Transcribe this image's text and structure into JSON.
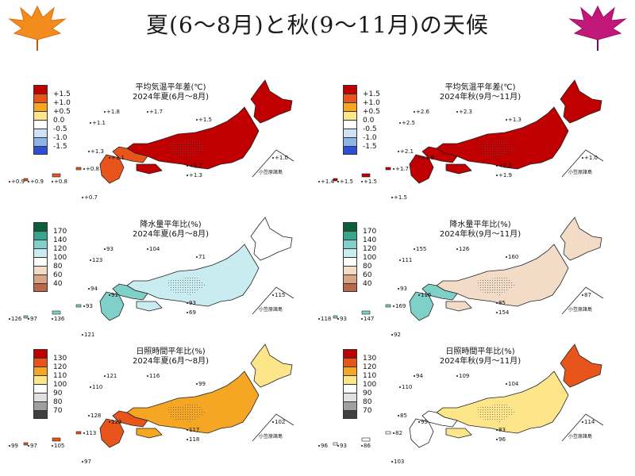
{
  "page_title": "夏(6〜8月)と秋(9〜11月)の天候",
  "islands_label": "小笠原諸島",
  "legends": {
    "temp": {
      "labels": [
        "+1.5",
        "+1.0",
        "+0.5",
        "0.0",
        "-0.5",
        "-1.0",
        "-1.5"
      ],
      "colors": [
        "#c00000",
        "#e8551a",
        "#f5a623",
        "#fde68a",
        "#ffffff",
        "#cfe3f7",
        "#8fb4e8",
        "#2b4fd6"
      ]
    },
    "precip": {
      "labels": [
        "170",
        "140",
        "120",
        "100",
        "80",
        "60",
        "40"
      ],
      "colors": [
        "#0b5e3a",
        "#3aa38e",
        "#7fd0c8",
        "#c8ecf0",
        "#ffffff",
        "#f2dcc8",
        "#d9a585",
        "#b86a48"
      ]
    },
    "sun": {
      "labels": [
        "130",
        "120",
        "110",
        "100",
        "90",
        "80",
        "70"
      ],
      "colors": [
        "#c00000",
        "#e8551a",
        "#f5a623",
        "#fde68a",
        "#ffffff",
        "#e0e0e0",
        "#a0a0a0",
        "#404040"
      ]
    }
  },
  "panels": [
    {
      "id": "temp-summer",
      "title_line1": "平均気温平年差(℃)",
      "title_line2": "2024年夏(6月〜8月)",
      "legend": "temp",
      "fill_main": "#c00000",
      "fill_west": "#e8551a",
      "fill_north": "#c00000",
      "values": [
        "+1.8",
        "+1.7",
        "+1.1",
        "+1.5",
        "+1.3",
        "+1.1",
        "+1.7",
        "+1.3",
        "+1.0",
        "+0.8",
        "+0.9",
        "+0.9",
        "+0.8",
        "+0.7"
      ]
    },
    {
      "id": "temp-autumn",
      "title_line1": "平均気温平年差(℃)",
      "title_line2": "2024年秋(9月〜11月)",
      "legend": "temp",
      "fill_main": "#c00000",
      "fill_west": "#c00000",
      "fill_north": "#c00000",
      "values": [
        "+2.6",
        "+2.3",
        "+2.5",
        "+1.3",
        "+2.1",
        "+1.9",
        "+2.2",
        "+1.9",
        "+1.0",
        "+1.7",
        "+1.4",
        "+1.5",
        "+1.5",
        "+1.5"
      ]
    },
    {
      "id": "precip-summer",
      "title_line1": "降水量平年比(%)",
      "title_line2": "2024年夏(6月〜8月)",
      "legend": "precip",
      "fill_main": "#c8ecf0",
      "fill_west": "#7fd0c8",
      "fill_north": "#ffffff",
      "values": [
        "93",
        "104",
        "123",
        "71",
        "94",
        "91",
        "93",
        "69",
        "115",
        "93",
        "126",
        "97",
        "136",
        "121"
      ]
    },
    {
      "id": "precip-autumn",
      "title_line1": "降水量平年比(%)",
      "title_line2": "2024年秋(9月〜11月)",
      "legend": "precip",
      "fill_main": "#f2dcc8",
      "fill_west": "#7fd0c8",
      "fill_north": "#f2dcc8",
      "values": [
        "155",
        "126",
        "111",
        "160",
        "93",
        "116",
        "85",
        "154",
        "87",
        "169",
        "118",
        "93",
        "147",
        "92"
      ]
    },
    {
      "id": "sun-summer",
      "title_line1": "日照時間平年比(%)",
      "title_line2": "2024年夏(6月〜8月)",
      "legend": "sun",
      "fill_main": "#f5a623",
      "fill_west": "#e8551a",
      "fill_north": "#fde68a",
      "values": [
        "121",
        "116",
        "110",
        "99",
        "128",
        "123",
        "117",
        "118",
        "102",
        "113",
        "99",
        "97",
        "105",
        "97"
      ]
    },
    {
      "id": "sun-autumn",
      "title_line1": "日照時間平年比(%)",
      "title_line2": "2024年秋(9月〜11月)",
      "legend": "sun",
      "fill_main": "#fde68a",
      "fill_west": "#ffffff",
      "fill_north": "#e8551a",
      "values": [
        "94",
        "109",
        "110",
        "104",
        "85",
        "95",
        "83",
        "96",
        "114",
        "82",
        "96",
        "93",
        "86",
        "103"
      ]
    }
  ]
}
